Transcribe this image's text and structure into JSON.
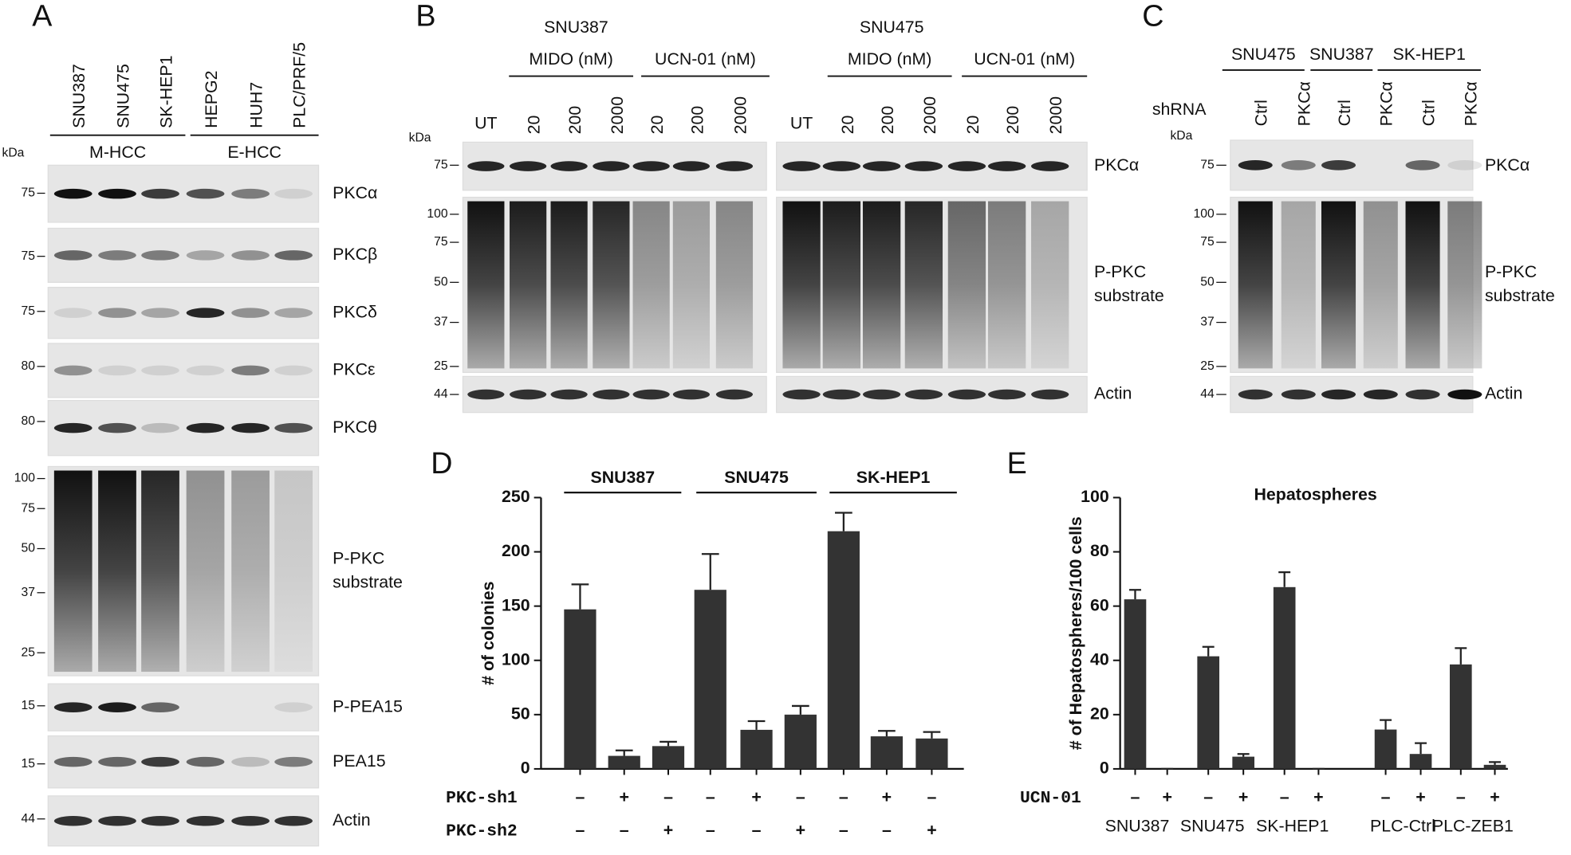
{
  "panels": [
    {
      "letter": "A",
      "lanes": [
        "SNU387",
        "SNU475",
        "SK-HEP1",
        "HEPG2",
        "HUH7",
        "PLC/PRF/5"
      ],
      "groups": [
        "M-HCC",
        "E-HCC"
      ],
      "kda": "kDa",
      "blots": [
        {
          "label": [
            "PKCα"
          ],
          "markers": [
            75
          ]
        },
        {
          "label": [
            "PKCβ"
          ],
          "markers": [
            75
          ]
        },
        {
          "label": [
            "PKCδ"
          ],
          "markers": [
            75
          ]
        },
        {
          "label": [
            "PKCε"
          ],
          "markers": [
            80
          ]
        },
        {
          "label": [
            "PKCθ"
          ],
          "markers": [
            80
          ]
        },
        {
          "label": [
            "P-PKC",
            "substrate"
          ],
          "markers": [
            100,
            75,
            50,
            37,
            25
          ]
        },
        {
          "label": [
            "P-PEA15"
          ],
          "markers": [
            15
          ]
        },
        {
          "label": [
            "PEA15"
          ],
          "markers": [
            15
          ]
        },
        {
          "label": [
            "Actin"
          ],
          "markers": [
            44
          ]
        }
      ]
    },
    {
      "letter": "B",
      "cell_lines": [
        "SNU387",
        "SNU475"
      ],
      "groups": [
        "MIDO (nM)",
        "UCN-01 (nM)",
        "MIDO (nM)",
        "UCN-01 (nM)"
      ],
      "lanes": [
        "UT",
        "20",
        "200",
        "2000",
        "20",
        "200",
        "2000",
        "UT",
        "20",
        "200",
        "2000",
        "20",
        "200",
        "2000"
      ],
      "kda": "kDa",
      "blots": [
        {
          "label": [
            "PKCα"
          ],
          "markers": [
            75
          ]
        },
        {
          "label": [
            "P-PKC",
            "substrate"
          ],
          "markers": [
            100,
            75,
            50,
            37,
            25
          ]
        },
        {
          "label": [
            "Actin"
          ],
          "markers": [
            44
          ]
        }
      ]
    },
    {
      "letter": "C",
      "cell_lines": [
        "SNU475",
        "SNU387",
        "SK-HEP1"
      ],
      "row_label": "shRNA",
      "lanes": [
        "Ctrl",
        "PKCα",
        "Ctrl",
        "PKCα",
        "Ctrl",
        "PKCα"
      ],
      "kda": "kDa",
      "blots": [
        {
          "label": [
            "PKCα"
          ],
          "markers": [
            75
          ]
        },
        {
          "label": [
            "P-PKC",
            "substrate"
          ],
          "markers": [
            100,
            75,
            50,
            37,
            25
          ]
        },
        {
          "label": [
            "Actin"
          ],
          "markers": [
            44
          ]
        }
      ]
    }
  ],
  "chart_data": [
    {
      "type": "bar",
      "letter": "D",
      "ylabel": "# of colonies",
      "ylim": [
        0,
        250
      ],
      "yticks": [
        0,
        50,
        100,
        150,
        200,
        250
      ],
      "color": "#333333",
      "groups": [
        "SNU387",
        "SNU475",
        "SK-HEP1"
      ],
      "values": [
        147,
        12,
        21,
        165,
        36,
        50,
        219,
        30,
        28
      ],
      "errors": [
        23,
        5,
        4,
        33,
        8,
        8,
        17,
        5,
        6
      ],
      "factor_rows": [
        {
          "name": "PKC-sh1",
          "signs": [
            "–",
            "+",
            "–",
            "–",
            "+",
            "–",
            "–",
            "+",
            "–"
          ]
        },
        {
          "name": "PKC-sh2",
          "signs": [
            "–",
            "–",
            "+",
            "–",
            "–",
            "+",
            "–",
            "–",
            "+"
          ]
        }
      ]
    },
    {
      "type": "bar",
      "letter": "E",
      "title": "Hepatospheres",
      "ylabel": "# of Hepatospheres/100 cells",
      "ylim": [
        0,
        100
      ],
      "yticks": [
        0,
        20,
        40,
        60,
        80,
        100
      ],
      "color": "#333333",
      "groups": [
        "SNU387",
        "SNU475",
        "SK-HEP1",
        "PLC-Ctrl",
        "PLC-ZEB1"
      ],
      "values": [
        62.5,
        0,
        41.5,
        4.5,
        67,
        0,
        14.5,
        5.5,
        38.5,
        1.5
      ],
      "errors": [
        3.5,
        0,
        3.5,
        1,
        5.5,
        0,
        3.5,
        4,
        6,
        1
      ],
      "factor_rows": [
        {
          "name": "UCN-01",
          "signs": [
            "–",
            "+",
            "–",
            "+",
            "–",
            "+",
            "–",
            "+",
            "–",
            "+"
          ]
        }
      ]
    }
  ]
}
